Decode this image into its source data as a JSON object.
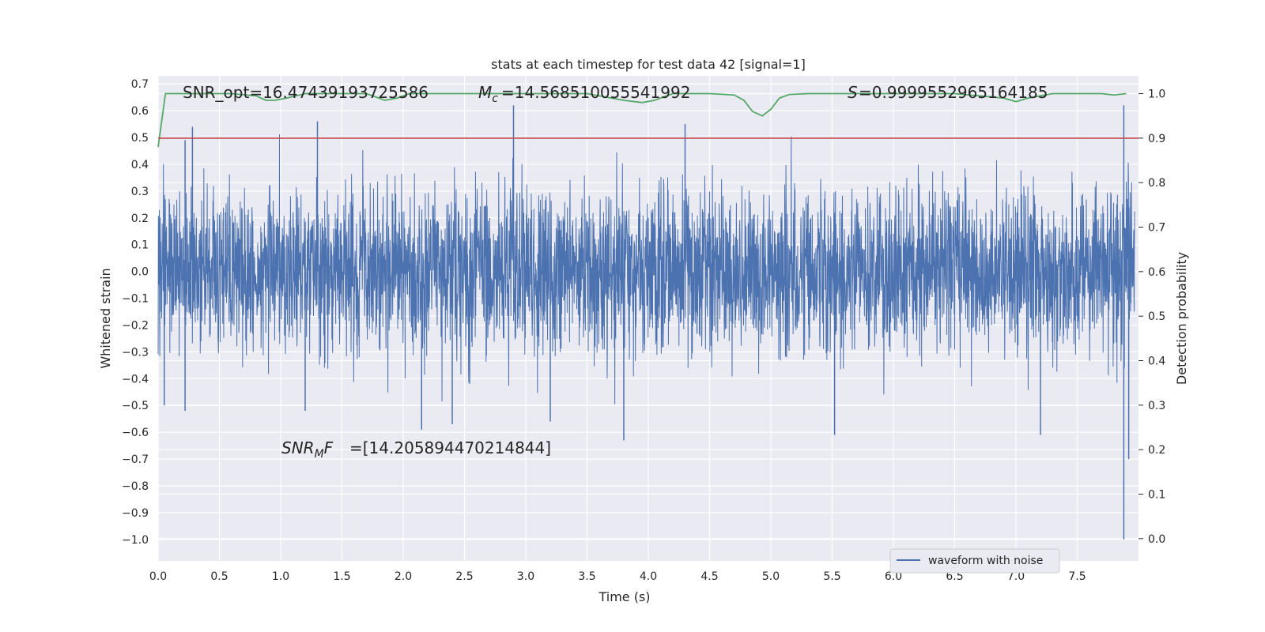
{
  "chart_data": {
    "type": "line",
    "title": "stats at each timestep for test data 42 [signal=1]",
    "xlabel": "Time (s)",
    "ylabel": "Whitened strain",
    "ylabel_right": "Detection probability",
    "xlim": [
      0.0,
      8.0
    ],
    "ylim": [
      -1.08,
      0.73
    ],
    "ylim_right": [
      -0.05,
      1.04
    ],
    "x_ticks": [
      "0.0",
      "0.5",
      "1.0",
      "1.5",
      "2.0",
      "2.5",
      "3.0",
      "3.5",
      "4.0",
      "4.5",
      "5.0",
      "5.5",
      "6.0",
      "6.5",
      "7.0",
      "7.5"
    ],
    "y_ticks": [
      "0.7",
      "0.6",
      "0.5",
      "0.4",
      "0.3",
      "0.2",
      "0.1",
      "0.0",
      "−0.1",
      "−0.2",
      "−0.3",
      "−0.4",
      "−0.5",
      "−0.6",
      "−0.7",
      "−0.8",
      "−0.9",
      "−1.0"
    ],
    "y_ticks_right": [
      "1.0",
      "0.9",
      "0.8",
      "0.7",
      "0.6",
      "0.5",
      "0.4",
      "0.3",
      "0.2",
      "0.1",
      "0.0"
    ],
    "grid": true,
    "legend": {
      "position": "lower-right",
      "entries": [
        "waveform with noise"
      ]
    },
    "annotations": {
      "snr_opt": "SNR_opt=16.47439193725586",
      "mc": "=14.568510055541992",
      "s": "=0.9999552965164185",
      "snr_mf": "=[14.205894470214844]"
    },
    "threshold": 0.9,
    "series": [
      {
        "name": "waveform with noise",
        "axis": "left",
        "color": "#4c72b0",
        "sample_rate": 512,
        "amplitude_envelope": 0.3,
        "peak_spikes": [
          {
            "x": 0.22,
            "y": 0.49
          },
          {
            "x": 0.28,
            "y": 0.54
          },
          {
            "x": 0.05,
            "y": -0.5
          },
          {
            "x": 0.22,
            "y": -0.52
          },
          {
            "x": 1.2,
            "y": -0.52
          },
          {
            "x": 1.3,
            "y": 0.56
          },
          {
            "x": 2.15,
            "y": -0.59
          },
          {
            "x": 2.4,
            "y": -0.57
          },
          {
            "x": 2.9,
            "y": 0.62
          },
          {
            "x": 3.2,
            "y": -0.56
          },
          {
            "x": 3.8,
            "y": -0.63
          },
          {
            "x": 4.3,
            "y": 0.55
          },
          {
            "x": 5.52,
            "y": -0.61
          },
          {
            "x": 7.2,
            "y": -0.61
          },
          {
            "x": 7.88,
            "y": 0.62
          },
          {
            "x": 7.88,
            "y": -1.0
          },
          {
            "x": 7.92,
            "y": -0.7
          }
        ]
      },
      {
        "name": "detection probability",
        "axis": "right",
        "color": "#55a868",
        "x": [
          0.0,
          0.06,
          0.12,
          0.3,
          0.6,
          0.8,
          0.88,
          0.95,
          1.05,
          1.2,
          1.4,
          1.7,
          1.85,
          1.95,
          2.05,
          2.5,
          3.0,
          3.5,
          3.8,
          3.95,
          4.05,
          4.2,
          4.5,
          4.7,
          4.78,
          4.85,
          4.93,
          5.0,
          5.07,
          5.15,
          5.3,
          5.6,
          6.0,
          6.5,
          6.9,
          7.0,
          7.1,
          7.3,
          7.7,
          7.8,
          7.9
        ],
        "y": [
          0.88,
          1.0,
          1.0,
          1.0,
          1.0,
          0.995,
          0.985,
          0.985,
          0.99,
          1.0,
          1.0,
          1.0,
          0.985,
          0.99,
          1.0,
          1.0,
          1.0,
          1.0,
          0.985,
          0.98,
          0.985,
          1.0,
          1.0,
          0.997,
          0.985,
          0.96,
          0.95,
          0.965,
          0.99,
          0.998,
          1.0,
          1.0,
          1.0,
          1.0,
          0.99,
          0.982,
          0.99,
          1.0,
          1.0,
          0.997,
          1.0
        ]
      },
      {
        "name": "threshold",
        "axis": "right",
        "color": "#c44e52",
        "x": [
          0.0,
          8.0
        ],
        "y": [
          0.9,
          0.9
        ]
      }
    ]
  }
}
